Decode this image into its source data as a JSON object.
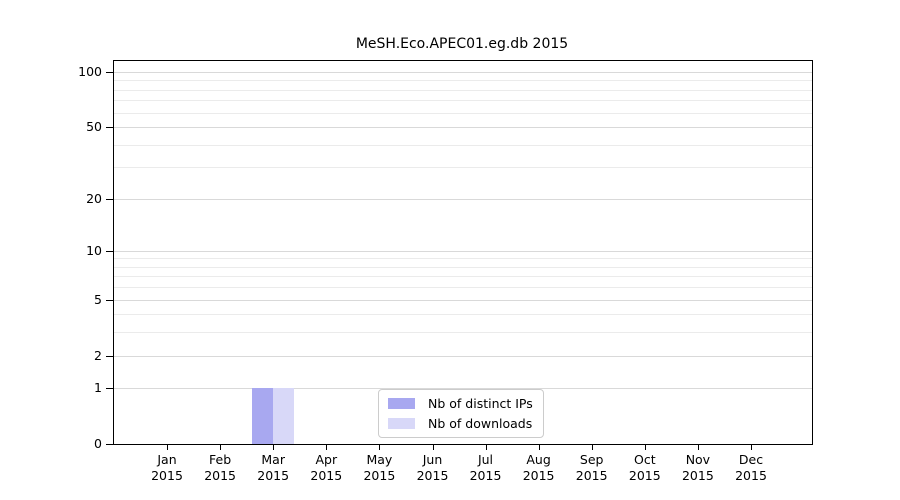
{
  "chart_data": {
    "type": "bar",
    "title": "MeSH.Eco.APEC01.eg.db 2015",
    "x": {
      "months": [
        "Jan",
        "Feb",
        "Mar",
        "Apr",
        "May",
        "Jun",
        "Jul",
        "Aug",
        "Sep",
        "Oct",
        "Nov",
        "Dec"
      ],
      "year": "2015"
    },
    "series": [
      {
        "name": "Nb of distinct IPs",
        "color": "#a8a8f0",
        "values": [
          0,
          0,
          1,
          0,
          0,
          0,
          0,
          0,
          0,
          0,
          0,
          0
        ]
      },
      {
        "name": "Nb of downloads",
        "color": "#d8d8f8",
        "values": [
          0,
          0,
          1,
          0,
          0,
          0,
          0,
          0,
          0,
          0,
          0,
          0
        ]
      }
    ],
    "y_axis": {
      "scale": "log1p",
      "major_ticks": [
        0,
        1,
        2,
        5,
        10,
        20,
        50,
        100
      ],
      "minor_gridlines": [
        3,
        4,
        6,
        7,
        8,
        9,
        30,
        40,
        60,
        70,
        80,
        90
      ],
      "ylim": [
        0,
        115
      ]
    },
    "grid": "horizontal",
    "legend_position": "inside-bottom-center",
    "colors": {
      "spine": "#000000",
      "major_grid": "#d9d9d9",
      "minor_grid": "#ebebeb",
      "background": "#ffffff"
    }
  }
}
